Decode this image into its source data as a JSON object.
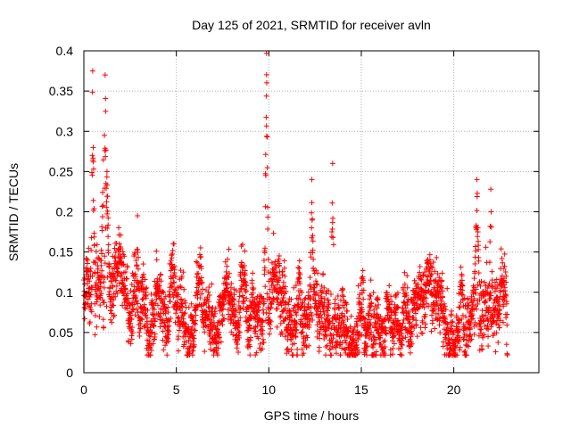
{
  "chart_data": {
    "type": "scatter",
    "title": "Day 125 of 2021, SRMTID for receiver avln",
    "xlabel": "GPS time / hours",
    "ylabel": "SRMTID / TECUs",
    "xlim": [
      0,
      24.6
    ],
    "ylim": [
      0,
      0.4
    ],
    "x_ticks": [
      0,
      5,
      10,
      15,
      20
    ],
    "x_tick_labels": [
      "0",
      "5",
      "10",
      "15",
      "20"
    ],
    "y_ticks": [
      0,
      0.05,
      0.1,
      0.15,
      0.2,
      0.25,
      0.3,
      0.35,
      0.4
    ],
    "y_tick_labels": [
      "0",
      "0.05",
      "0.1",
      "0.15",
      "0.2",
      "0.25",
      "0.3",
      "0.35",
      "0.4"
    ],
    "grid": true,
    "marker": "+",
    "color": "#ff0000",
    "point_count_estimate": 3000,
    "x_range_of_data": [
      0,
      22.9
    ],
    "baseline": {
      "note": "Typical level of the point cloud (median and spread) read from the figure",
      "x": [
        0,
        1,
        2,
        3,
        4,
        5,
        6,
        7,
        8,
        9,
        10,
        11,
        12,
        13,
        14,
        15,
        16,
        17,
        18,
        19,
        20,
        21,
        22,
        22.9
      ],
      "median": [
        0.095,
        0.105,
        0.085,
        0.08,
        0.08,
        0.08,
        0.08,
        0.07,
        0.085,
        0.085,
        0.09,
        0.08,
        0.085,
        0.09,
        0.085,
        0.08,
        0.08,
        0.075,
        0.09,
        0.085,
        0.065,
        0.1,
        0.09,
        0.09
      ],
      "spread": [
        0.025,
        0.03,
        0.025,
        0.025,
        0.025,
        0.025,
        0.025,
        0.02,
        0.025,
        0.025,
        0.025,
        0.025,
        0.025,
        0.025,
        0.025,
        0.025,
        0.025,
        0.02,
        0.025,
        0.025,
        0.02,
        0.03,
        0.025,
        0.025
      ]
    },
    "spikes": [
      {
        "x_start": 0.35,
        "x_end": 0.6,
        "peak": 0.375
      },
      {
        "x_start": 0.9,
        "x_end": 1.4,
        "peak": 0.37
      },
      {
        "x_start": 1.1,
        "x_end": 1.4,
        "peak": 0.25
      },
      {
        "x_start": 2.8,
        "x_end": 3.0,
        "peak": 0.195
      },
      {
        "x_start": 9.75,
        "x_end": 10.0,
        "peak": 0.397
      },
      {
        "x_start": 12.2,
        "x_end": 12.45,
        "peak": 0.24
      },
      {
        "x_start": 13.35,
        "x_end": 13.55,
        "peak": 0.26
      },
      {
        "x_start": 21.1,
        "x_end": 21.4,
        "peak": 0.24
      },
      {
        "x_start": 21.9,
        "x_end": 22.1,
        "peak": 0.228
      }
    ]
  }
}
